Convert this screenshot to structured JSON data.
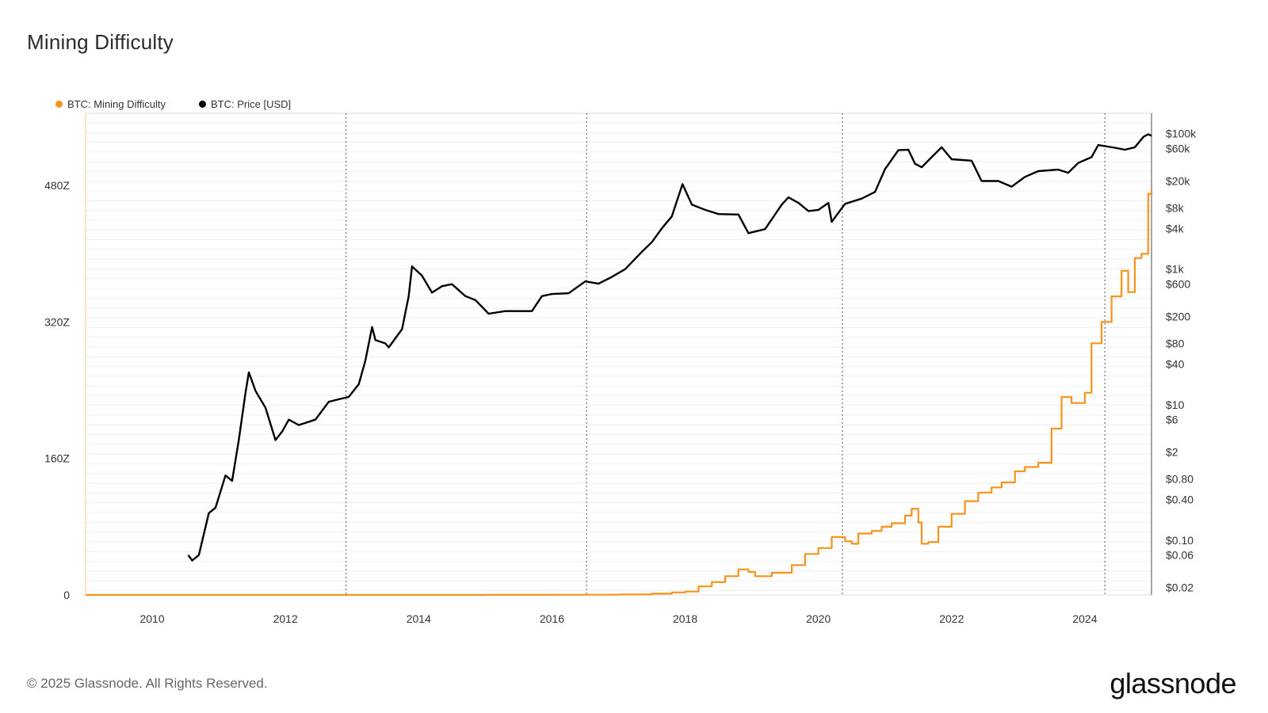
{
  "header": {
    "title": "Mining Difficulty"
  },
  "footer": {
    "copyright": "© 2025 Glassnode. All Rights Reserved.",
    "brand": "glassnode"
  },
  "colors": {
    "difficulty": "#f7931a",
    "price": "#000000",
    "grid": "#ececec",
    "event_line": "#555555"
  },
  "chart_data": {
    "type": "line",
    "title": "Mining Difficulty",
    "legend": "top-left",
    "grid": true,
    "x_ticks": [
      "2010",
      "2012",
      "2014",
      "2016",
      "2018",
      "2020",
      "2022",
      "2024"
    ],
    "x_range": [
      2009.0,
      2025.0
    ],
    "event_dates": [
      2012.91,
      2016.52,
      2020.36,
      2024.3
    ],
    "left_axis": {
      "ticks": [
        "480Z",
        "320Z",
        "160Z",
        "0"
      ],
      "tick_values": [
        480,
        320,
        160,
        0
      ],
      "ylim": [
        0,
        560
      ],
      "unit": "Z"
    },
    "right_axis": {
      "scale": "log",
      "ticks": [
        "$100k",
        "$60k",
        "$20k",
        "$8k",
        "$4k",
        "$1k",
        "$600",
        "$200",
        "$80",
        "$40",
        "$10",
        "$6",
        "$2",
        "$0.80",
        "$0.40",
        "$0.10",
        "$0.06",
        "$0.02"
      ],
      "tick_values": [
        100000,
        60000,
        20000,
        8000,
        4000,
        1000,
        600,
        200,
        80,
        40,
        10,
        6,
        2,
        0.8,
        0.4,
        0.1,
        0.06,
        0.02
      ],
      "ylim": [
        0.0155,
        200000
      ]
    },
    "series": [
      {
        "name": "BTC: Mining Difficulty",
        "axis": "left",
        "color": "#f7931a",
        "points": [
          [
            2009.0,
            0
          ],
          [
            2013.0,
            0
          ],
          [
            2014.0,
            0.02
          ],
          [
            2015.0,
            0.05
          ],
          [
            2016.0,
            0.2
          ],
          [
            2016.5,
            0.3
          ],
          [
            2017.0,
            0.6
          ],
          [
            2017.5,
            1.5
          ],
          [
            2017.8,
            3
          ],
          [
            2018.0,
            4
          ],
          [
            2018.2,
            10
          ],
          [
            2018.4,
            15
          ],
          [
            2018.6,
            22
          ],
          [
            2018.8,
            30
          ],
          [
            2018.95,
            27
          ],
          [
            2019.05,
            22
          ],
          [
            2019.3,
            26
          ],
          [
            2019.6,
            35
          ],
          [
            2019.8,
            48
          ],
          [
            2020.0,
            55
          ],
          [
            2020.2,
            68
          ],
          [
            2020.4,
            63
          ],
          [
            2020.5,
            60
          ],
          [
            2020.6,
            72
          ],
          [
            2020.8,
            75
          ],
          [
            2020.95,
            80
          ],
          [
            2021.1,
            84
          ],
          [
            2021.3,
            93
          ],
          [
            2021.4,
            101
          ],
          [
            2021.5,
            85
          ],
          [
            2021.55,
            60
          ],
          [
            2021.65,
            62
          ],
          [
            2021.8,
            80
          ],
          [
            2022.0,
            95
          ],
          [
            2022.2,
            110
          ],
          [
            2022.4,
            120
          ],
          [
            2022.6,
            126
          ],
          [
            2022.75,
            132
          ],
          [
            2022.95,
            145
          ],
          [
            2023.1,
            150
          ],
          [
            2023.3,
            155
          ],
          [
            2023.5,
            195
          ],
          [
            2023.65,
            232
          ],
          [
            2023.8,
            225
          ],
          [
            2024.0,
            237
          ],
          [
            2024.1,
            295
          ],
          [
            2024.25,
            320
          ],
          [
            2024.4,
            350
          ],
          [
            2024.55,
            380
          ],
          [
            2024.65,
            355
          ],
          [
            2024.75,
            395
          ],
          [
            2024.85,
            400
          ],
          [
            2024.95,
            470
          ],
          [
            2025.0,
            475
          ]
        ]
      },
      {
        "name": "BTC: Price [USD]",
        "axis": "right",
        "color": "#000000",
        "points": [
          [
            2010.54,
            0.06
          ],
          [
            2010.6,
            0.05
          ],
          [
            2010.7,
            0.06
          ],
          [
            2010.85,
            0.25
          ],
          [
            2010.95,
            0.3
          ],
          [
            2011.1,
            0.9
          ],
          [
            2011.2,
            0.75
          ],
          [
            2011.3,
            3
          ],
          [
            2011.4,
            15
          ],
          [
            2011.45,
            30
          ],
          [
            2011.55,
            16
          ],
          [
            2011.7,
            9
          ],
          [
            2011.85,
            3
          ],
          [
            2011.95,
            4
          ],
          [
            2012.05,
            6
          ],
          [
            2012.2,
            5
          ],
          [
            2012.45,
            6
          ],
          [
            2012.65,
            11
          ],
          [
            2012.8,
            12
          ],
          [
            2012.95,
            13
          ],
          [
            2013.1,
            20
          ],
          [
            2013.2,
            45
          ],
          [
            2013.3,
            140
          ],
          [
            2013.35,
            90
          ],
          [
            2013.5,
            80
          ],
          [
            2013.55,
            70
          ],
          [
            2013.75,
            130
          ],
          [
            2013.85,
            400
          ],
          [
            2013.9,
            1100
          ],
          [
            2014.05,
            800
          ],
          [
            2014.2,
            450
          ],
          [
            2014.35,
            560
          ],
          [
            2014.5,
            600
          ],
          [
            2014.7,
            400
          ],
          [
            2014.85,
            350
          ],
          [
            2015.05,
            220
          ],
          [
            2015.3,
            240
          ],
          [
            2015.5,
            240
          ],
          [
            2015.7,
            240
          ],
          [
            2015.85,
            400
          ],
          [
            2016.0,
            430
          ],
          [
            2016.25,
            440
          ],
          [
            2016.5,
            660
          ],
          [
            2016.7,
            610
          ],
          [
            2016.9,
            770
          ],
          [
            2017.1,
            1000
          ],
          [
            2017.35,
            1800
          ],
          [
            2017.5,
            2500
          ],
          [
            2017.65,
            4000
          ],
          [
            2017.8,
            6000
          ],
          [
            2017.96,
            18000
          ],
          [
            2018.1,
            9000
          ],
          [
            2018.3,
            7500
          ],
          [
            2018.5,
            6500
          ],
          [
            2018.8,
            6400
          ],
          [
            2018.95,
            3400
          ],
          [
            2019.2,
            3900
          ],
          [
            2019.45,
            9000
          ],
          [
            2019.55,
            11500
          ],
          [
            2019.7,
            9500
          ],
          [
            2019.85,
            7200
          ],
          [
            2020.0,
            7500
          ],
          [
            2020.15,
            9500
          ],
          [
            2020.2,
            5000
          ],
          [
            2020.4,
            9200
          ],
          [
            2020.65,
            11000
          ],
          [
            2020.85,
            13800
          ],
          [
            2021.0,
            30000
          ],
          [
            2021.2,
            57000
          ],
          [
            2021.35,
            58000
          ],
          [
            2021.45,
            36000
          ],
          [
            2021.55,
            32000
          ],
          [
            2021.7,
            45000
          ],
          [
            2021.85,
            63000
          ],
          [
            2022.0,
            42000
          ],
          [
            2022.3,
            40000
          ],
          [
            2022.45,
            20000
          ],
          [
            2022.7,
            20000
          ],
          [
            2022.9,
            16500
          ],
          [
            2023.1,
            23000
          ],
          [
            2023.3,
            28000
          ],
          [
            2023.6,
            29500
          ],
          [
            2023.75,
            26500
          ],
          [
            2023.9,
            37000
          ],
          [
            2024.1,
            45000
          ],
          [
            2024.2,
            68000
          ],
          [
            2024.45,
            62000
          ],
          [
            2024.6,
            58000
          ],
          [
            2024.75,
            63000
          ],
          [
            2024.88,
            90000
          ],
          [
            2024.95,
            98000
          ],
          [
            2025.0,
            93000
          ]
        ]
      }
    ]
  }
}
